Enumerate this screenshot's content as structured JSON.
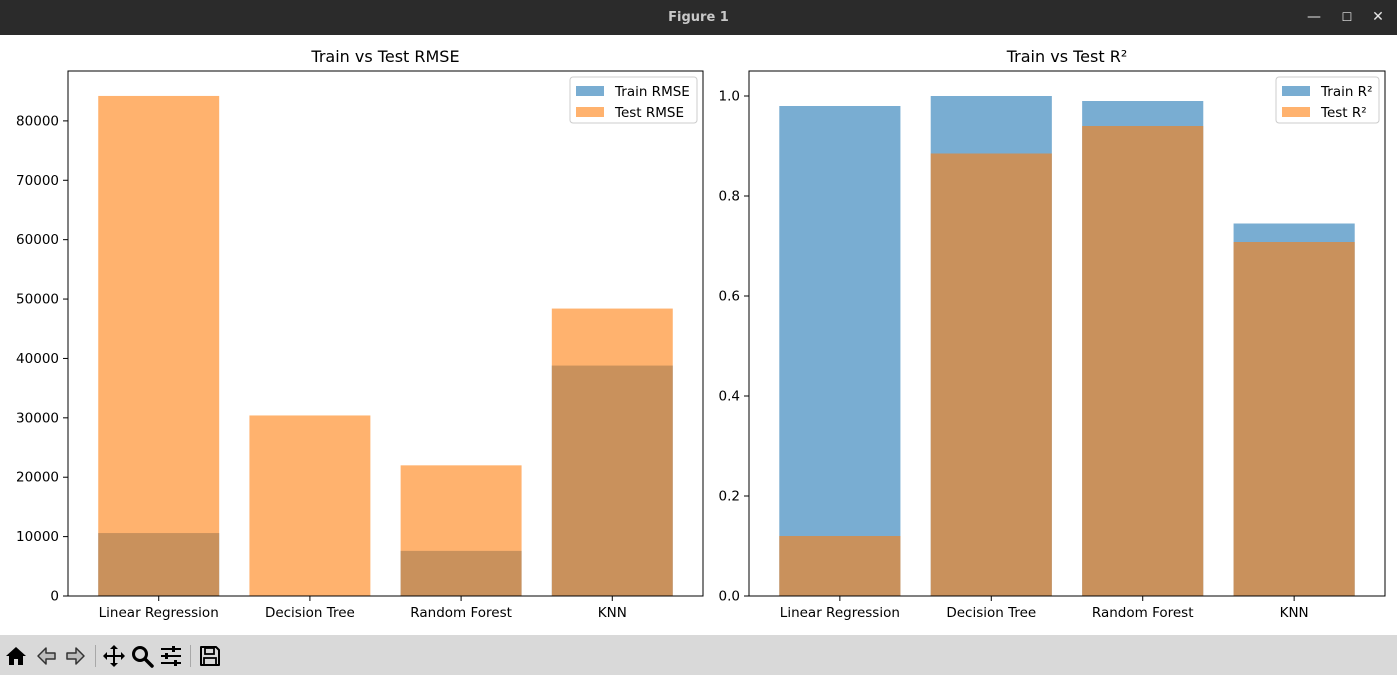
{
  "window": {
    "title": "Figure 1",
    "minimize_glyph": "—",
    "maximize_glyph": "☐",
    "close_glyph": "✕"
  },
  "toolbar": {
    "icons": [
      "home-icon",
      "back-icon",
      "forward-icon",
      "pan-icon",
      "zoom-icon",
      "configure-subplots-icon",
      "save-icon"
    ]
  },
  "chart_data": [
    {
      "type": "bar",
      "title": "Train vs Test RMSE",
      "xlabel": "",
      "ylabel": "",
      "categories": [
        "Linear Regression",
        "Decision Tree",
        "Random Forest",
        "KNN"
      ],
      "series": [
        {
          "name": "Train RMSE",
          "color": "#1f77b4",
          "alpha": 0.6,
          "values": [
            10600,
            0,
            7600,
            38800
          ]
        },
        {
          "name": "Test RMSE",
          "color": "#ff7f0e",
          "alpha": 0.6,
          "values": [
            84200,
            30400,
            22000,
            48400
          ]
        }
      ],
      "ylim": [
        0,
        88400
      ],
      "yticks": [
        0,
        10000,
        20000,
        30000,
        40000,
        50000,
        60000,
        70000,
        80000
      ],
      "ytick_labels": [
        "0",
        "10000",
        "20000",
        "30000",
        "40000",
        "50000",
        "60000",
        "70000",
        "80000"
      ],
      "legend_position": "upper right",
      "grid": false
    },
    {
      "type": "bar",
      "title": "Train vs Test R²",
      "xlabel": "",
      "ylabel": "",
      "categories": [
        "Linear Regression",
        "Decision Tree",
        "Random Forest",
        "KNN"
      ],
      "series": [
        {
          "name": "Train R²",
          "color": "#1f77b4",
          "alpha": 0.6,
          "values": [
            0.98,
            1.0,
            0.99,
            0.745
          ]
        },
        {
          "name": "Test R²",
          "color": "#ff7f0e",
          "alpha": 0.6,
          "values": [
            0.12,
            0.885,
            0.94,
            0.708
          ]
        }
      ],
      "ylim": [
        0,
        1.05
      ],
      "yticks": [
        0,
        0.2,
        0.4,
        0.6,
        0.8,
        1.0
      ],
      "ytick_labels": [
        "0.0",
        "0.2",
        "0.4",
        "0.6",
        "0.8",
        "1.0"
      ],
      "legend_position": "upper right",
      "grid": false
    }
  ]
}
